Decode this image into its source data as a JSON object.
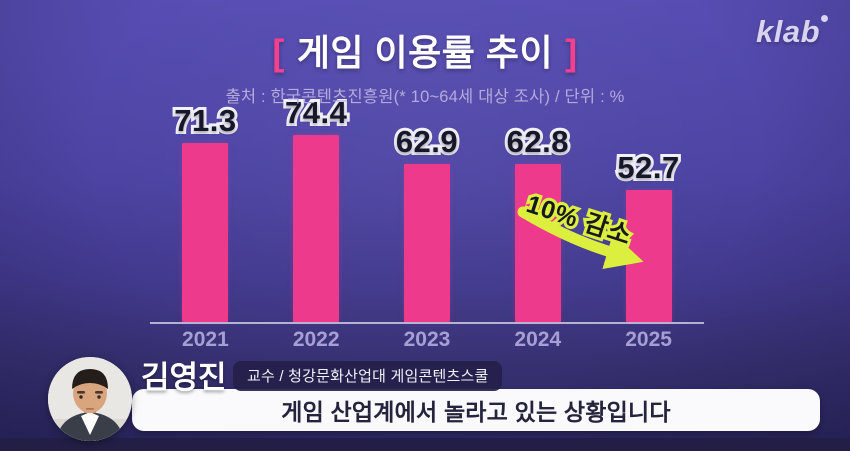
{
  "logo": {
    "text": "klab"
  },
  "header": {
    "bracket_left": "[",
    "title": "게임 이용률 추이",
    "bracket_right": "]",
    "subtitle": "출처 : 한국콘텐츠진흥원(* 10~64세 대상 조사) / 단위 : %"
  },
  "chart_data": {
    "type": "bar",
    "title": "게임 이용률 추이",
    "source": "출처 : 한국콘텐츠진흥원(* 10~64세 대상 조사)",
    "unit": "%",
    "categories": [
      "2021",
      "2022",
      "2023",
      "2024",
      "2025"
    ],
    "values": [
      71.3,
      74.4,
      62.9,
      62.8,
      52.7
    ],
    "ylim": [
      0,
      80
    ],
    "grid": false,
    "legend": false,
    "bar_color": "#ee3a8c",
    "annotation": {
      "text": "10% 감소",
      "arrow_color": "#dcef3e",
      "from_category": "2024",
      "to_category": "2025"
    }
  },
  "speaker": {
    "name": "김영진",
    "title_badge": "교수 / 청강문화산업대 게임콘텐츠스쿨"
  },
  "caption": {
    "text": "게임 산업계에서 놀라고 있는 상황입니다"
  },
  "colors": {
    "background_top": "#574db3",
    "background_bottom": "#2c2760",
    "bar": "#ee3a8c",
    "title_bracket": "#f5408f",
    "subtitle_text": "#b3abdd",
    "axis_label": "#a79fd3",
    "value_label_fill": "#17172b",
    "value_label_outline": "#f3f1f8",
    "annotation_outline": "#dcef3e",
    "caption_background": "#faf9fc",
    "caption_text": "#26243c"
  }
}
